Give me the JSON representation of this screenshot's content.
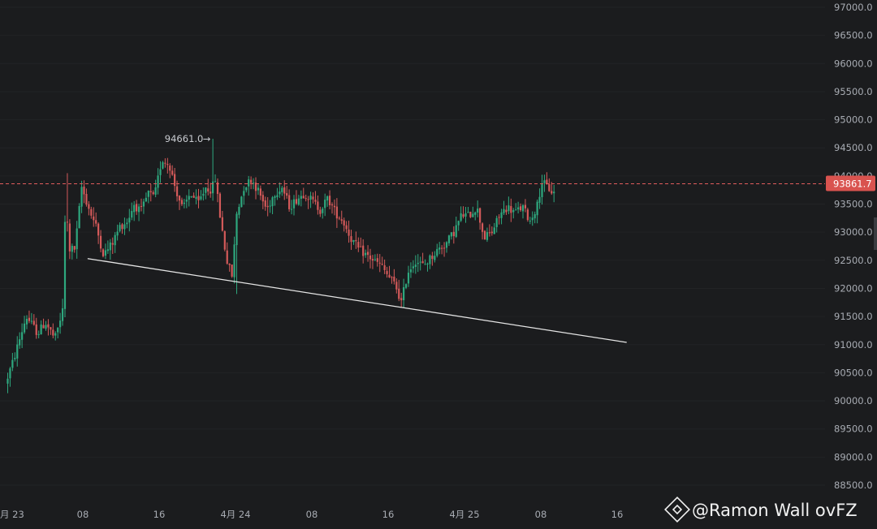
{
  "chart_data": {
    "type": "candlestick",
    "y_axis": {
      "ylim": [
        88250,
        97000
      ],
      "ticks": [
        "97000.0",
        "96500.0",
        "96000.0",
        "95500.0",
        "95000.0",
        "94500.0",
        "94000.0",
        "93500.0",
        "93000.0",
        "92500.0",
        "92000.0",
        "91500.0",
        "91000.0",
        "90500.0",
        "90000.0",
        "89500.0",
        "89000.0",
        "88500.0"
      ]
    },
    "x_axis": {
      "ticks": [
        {
          "label": "月 23",
          "pos": 0.0
        },
        {
          "label": "08",
          "pos": 8.0
        },
        {
          "label": "16",
          "pos": 16.0
        },
        {
          "label": "4月 24",
          "pos": 24.0
        },
        {
          "label": "08",
          "pos": 32.0
        },
        {
          "label": "16",
          "pos": 40.0
        },
        {
          "label": "4月 25",
          "pos": 48.0
        },
        {
          "label": "08",
          "pos": 56.0
        },
        {
          "label": "16",
          "pos": 64.0
        }
      ]
    },
    "current_price": {
      "value": 93861.7,
      "label": "93861.7"
    },
    "high_marker": {
      "value": 94661.0,
      "label": "94661.0",
      "arrow": "→"
    },
    "trendline": {
      "start": [
        8.5,
        92530
      ],
      "end": [
        65,
        91040
      ]
    },
    "anchors": [
      [
        0,
        90300
      ],
      [
        0.8,
        90700
      ],
      [
        2.2,
        91500
      ],
      [
        3.4,
        91200
      ],
      [
        4.2,
        91400
      ],
      [
        5.2,
        91100
      ],
      [
        6.0,
        91600
      ],
      [
        6.35,
        93800
      ],
      [
        6.6,
        92700
      ],
      [
        7.3,
        92700
      ],
      [
        8.0,
        93800
      ],
      [
        8.8,
        93400
      ],
      [
        9.5,
        93100
      ],
      [
        10.3,
        92600
      ],
      [
        11.2,
        92800
      ],
      [
        12.0,
        93100
      ],
      [
        12.8,
        93200
      ],
      [
        13.5,
        93500
      ],
      [
        14.2,
        93350
      ],
      [
        15.0,
        93700
      ],
      [
        15.6,
        93600
      ],
      [
        16.4,
        94300
      ],
      [
        17.2,
        94200
      ],
      [
        17.8,
        93800
      ],
      [
        18.6,
        93400
      ],
      [
        19.4,
        93700
      ],
      [
        20.2,
        93500
      ],
      [
        21.0,
        93800
      ],
      [
        21.6,
        93750
      ],
      [
        22.0,
        93950
      ],
      [
        22.5,
        93300
      ],
      [
        23.2,
        92500
      ],
      [
        23.8,
        92200
      ],
      [
        24.2,
        93300
      ],
      [
        25.0,
        93800
      ],
      [
        25.8,
        93950
      ],
      [
        26.6,
        93700
      ],
      [
        27.4,
        93400
      ],
      [
        28.2,
        93700
      ],
      [
        29.0,
        93800
      ],
      [
        29.8,
        93450
      ],
      [
        30.6,
        93600
      ],
      [
        31.4,
        93700
      ],
      [
        32.2,
        93550
      ],
      [
        33.0,
        93400
      ],
      [
        33.8,
        93600
      ],
      [
        34.6,
        93350
      ],
      [
        35.4,
        93200
      ],
      [
        36.2,
        92900
      ],
      [
        37.0,
        92700
      ],
      [
        37.8,
        92600
      ],
      [
        38.6,
        92500
      ],
      [
        39.4,
        92400
      ],
      [
        40.2,
        92200
      ],
      [
        40.9,
        92050
      ],
      [
        41.5,
        91750
      ],
      [
        42.2,
        92300
      ],
      [
        43.0,
        92500
      ],
      [
        43.8,
        92400
      ],
      [
        44.6,
        92550
      ],
      [
        45.4,
        92700
      ],
      [
        46.2,
        92800
      ],
      [
        47.0,
        93000
      ],
      [
        47.8,
        93300
      ],
      [
        48.6,
        93300
      ],
      [
        49.4,
        93450
      ],
      [
        50.2,
        92900
      ],
      [
        51.0,
        93000
      ],
      [
        51.8,
        93300
      ],
      [
        52.6,
        93450
      ],
      [
        53.4,
        93350
      ],
      [
        54.2,
        93450
      ],
      [
        55.0,
        93200
      ],
      [
        55.8,
        93500
      ],
      [
        56.2,
        93900
      ],
      [
        56.8,
        93800
      ],
      [
        57.4,
        93700
      ]
    ]
  },
  "watermark": {
    "text": "@Ramon Wall ovFZ"
  }
}
